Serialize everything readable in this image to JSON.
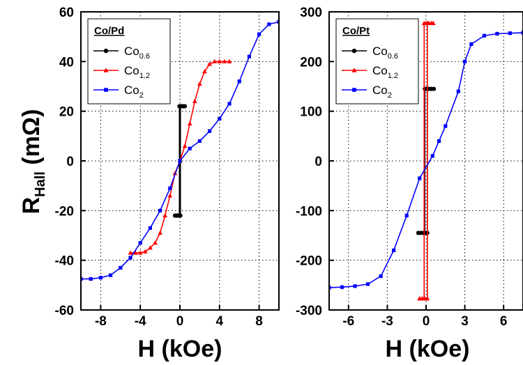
{
  "chart_data": [
    {
      "type": "line",
      "xlabel": "H (kOe)",
      "ylabel_main": "R",
      "ylabel_sub": "Hall",
      "ylabel_unit": " (mΩ)",
      "xlim": [
        -10,
        10
      ],
      "ylim": [
        -60,
        60
      ],
      "xticks": [
        -8,
        -4,
        0,
        4,
        8
      ],
      "yticks": [
        -60,
        -40,
        -20,
        0,
        20,
        40,
        60
      ],
      "xtick_labels": [
        "-8",
        "-4",
        "0",
        "4",
        "8"
      ],
      "ytick_labels": [
        "-60",
        "-40",
        "-20",
        "0",
        "20",
        "40",
        "60"
      ],
      "grid": "dotted",
      "legend_position": "top-left",
      "legend_title": "Co/Pd",
      "series": [
        {
          "name": "Co0.6",
          "name_base": "Co",
          "name_sub": "0.6",
          "color": "#000000",
          "marker": "circle",
          "x": [
            -0.5,
            -0.4,
            -0.3,
            -0.2,
            -0.1,
            -0.05,
            -0.05,
            0,
            0.1,
            0.2,
            0.3,
            0.4,
            0.5,
            0.5,
            0.4,
            0.3,
            0.2,
            0.1,
            0.05,
            0.05,
            0,
            -0.1,
            -0.2,
            -0.3,
            -0.4,
            -0.5
          ],
          "y": [
            -22,
            -22,
            -22,
            -22,
            -22,
            -22,
            22,
            22,
            22,
            22,
            22,
            22,
            22,
            22,
            22,
            22,
            22,
            22,
            22,
            -22,
            -22,
            -22,
            -22,
            -22,
            -22,
            -22
          ]
        },
        {
          "name": "Co1.2",
          "name_base": "Co",
          "name_sub": "1.2",
          "color": "#ff0000",
          "marker": "triangle",
          "x": [
            -5,
            -4.5,
            -4,
            -3.5,
            -3,
            -2.5,
            -2,
            -1.5,
            -1,
            -0.5,
            0,
            0.5,
            1,
            1.5,
            2,
            2.5,
            3,
            3.5,
            4,
            4.5,
            5
          ],
          "y": [
            -37,
            -37,
            -37,
            -36.5,
            -35,
            -33,
            -29,
            -22,
            -14,
            -5,
            0,
            6,
            15,
            24,
            31,
            36,
            39,
            40,
            40,
            40,
            40
          ]
        },
        {
          "name": "Co2",
          "name_base": "Co",
          "name_sub": "2",
          "color": "#0000ff",
          "marker": "square",
          "x": [
            -10,
            -9,
            -8,
            -7,
            -6,
            -5,
            -4,
            -3,
            -2,
            -1,
            0,
            1,
            2,
            3,
            4,
            5,
            6,
            7,
            8,
            9,
            10
          ],
          "y": [
            -47.5,
            -47.5,
            -47,
            -46,
            -43,
            -39,
            -33,
            -27,
            -20,
            -11,
            0,
            5,
            8,
            12,
            17,
            23,
            32,
            42,
            51,
            55,
            56
          ]
        }
      ]
    },
    {
      "type": "line",
      "xlabel": "H (kOe)",
      "xlim": [
        -7.5,
        7.5
      ],
      "ylim": [
        -300,
        300
      ],
      "xticks": [
        -6,
        -3,
        0,
        3,
        6
      ],
      "yticks": [
        -300,
        -200,
        -100,
        0,
        100,
        200,
        300
      ],
      "xtick_labels": [
        "-6",
        "-3",
        "0",
        "3",
        "6"
      ],
      "ytick_labels": [
        "-300",
        "-200",
        "-100",
        "0",
        "100",
        "200",
        "300"
      ],
      "grid": "dotted",
      "legend_position": "top-left",
      "legend_title": "Co/Pt",
      "series": [
        {
          "name": "Co0.6",
          "name_base": "Co",
          "name_sub": "0.6",
          "color": "#000000",
          "marker": "circle",
          "x": [
            -0.6,
            -0.4,
            -0.2,
            -0.1,
            -0.1,
            0,
            0.2,
            0.4,
            0.6,
            0.6,
            0.4,
            0.2,
            0.1,
            0.1,
            0,
            -0.2,
            -0.4,
            -0.6
          ],
          "y": [
            -145,
            -145,
            -145,
            -145,
            145,
            145,
            145,
            145,
            145,
            145,
            145,
            145,
            145,
            -145,
            -145,
            -145,
            -145,
            -145
          ]
        },
        {
          "name": "Co1.2",
          "name_base": "Co",
          "name_sub": "1.2",
          "color": "#ff0000",
          "marker": "triangle",
          "x": [
            -0.5,
            -0.3,
            -0.15,
            -0.15,
            0,
            0.2,
            0.4,
            0.55,
            0.55,
            0.4,
            0.2,
            0.1,
            0.1,
            -0.1,
            -0.3,
            -0.5
          ],
          "y": [
            -277,
            -277,
            -277,
            277,
            277,
            277,
            277,
            277,
            277,
            277,
            277,
            277,
            -277,
            -277,
            -277,
            -277
          ]
        },
        {
          "name": "Co2",
          "name_base": "Co",
          "name_sub": "2",
          "color": "#0000ff",
          "marker": "square",
          "x": [
            -7.5,
            -6.5,
            -5.5,
            -4.5,
            -3.5,
            -2.5,
            -1.5,
            -0.5,
            0.5,
            1,
            1.5,
            2.5,
            3,
            3.5,
            4.5,
            5.5,
            6.5,
            7.5
          ],
          "y": [
            -255,
            -254,
            -252,
            -248,
            -232,
            -180,
            -110,
            -35,
            10,
            40,
            70,
            140,
            200,
            235,
            252,
            256,
            257,
            258
          ]
        }
      ]
    }
  ]
}
